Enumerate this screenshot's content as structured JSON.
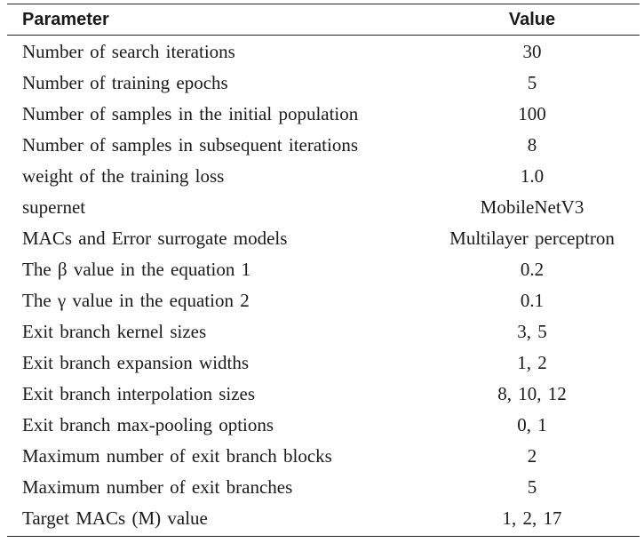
{
  "table": {
    "header": {
      "parameter": "Parameter",
      "value": "Value"
    },
    "rows": [
      {
        "parameter": "Number of search iterations",
        "value": "30"
      },
      {
        "parameter": "Number of training epochs",
        "value": "5"
      },
      {
        "parameter": "Number of samples in the initial population",
        "value": "100"
      },
      {
        "parameter": "Number of samples in subsequent iterations",
        "value": "8"
      },
      {
        "parameter": "weight of the training loss",
        "value": "1.0"
      },
      {
        "parameter": "supernet",
        "value": "MobileNetV3"
      },
      {
        "parameter": "MACs and Error surrogate models",
        "value": "Multilayer perceptron"
      },
      {
        "parameter": "The β value in the equation 1",
        "value": "0.2"
      },
      {
        "parameter": "The γ value in the equation 2",
        "value": "0.1"
      },
      {
        "parameter": "Exit branch kernel sizes",
        "value": "3, 5"
      },
      {
        "parameter": "Exit branch expansion widths",
        "value": "1, 2"
      },
      {
        "parameter": "Exit branch interpolation sizes",
        "value": "8, 10, 12"
      },
      {
        "parameter": "Exit branch max-pooling options",
        "value": "0, 1"
      },
      {
        "parameter": "Maximum number of exit branch blocks",
        "value": "2"
      },
      {
        "parameter": "Maximum number of exit branches",
        "value": "5"
      },
      {
        "parameter": "Target MACs (M) value",
        "value": "1, 2, 17"
      }
    ]
  }
}
